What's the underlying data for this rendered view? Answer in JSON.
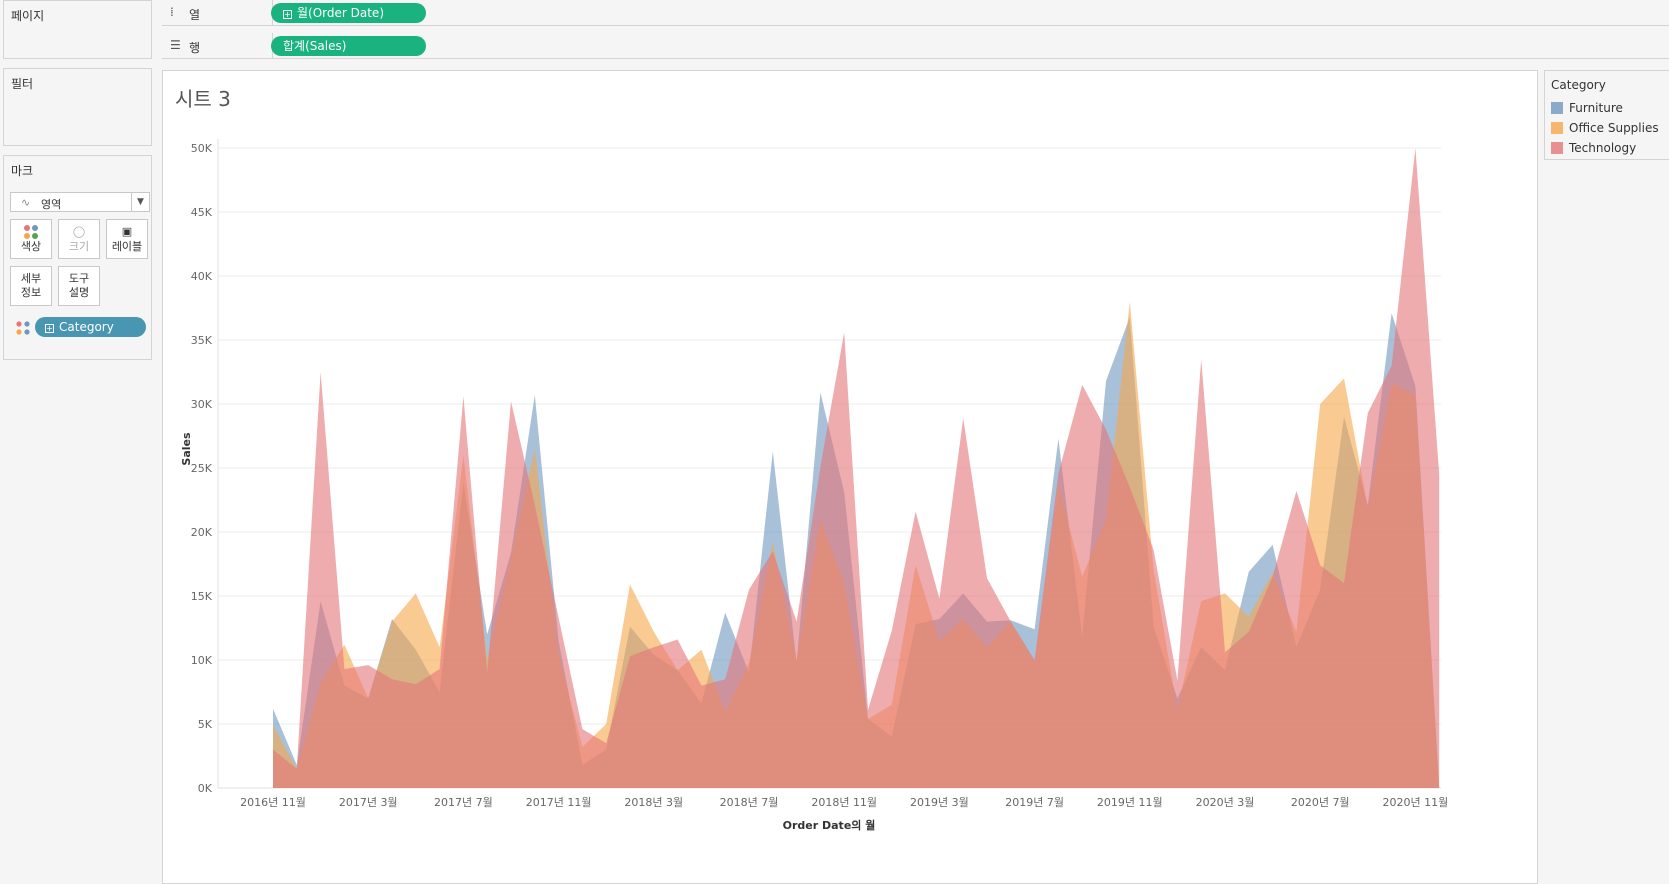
{
  "shelves": {
    "columns": {
      "label": "열",
      "pill": "월(Order Date)"
    },
    "rows": {
      "label": "행",
      "pill": "합계(Sales)"
    }
  },
  "panels": {
    "pages": "페이지",
    "filters": "필터",
    "marks": "마크"
  },
  "marks": {
    "type": "영역",
    "buttons": {
      "color": "색상",
      "size": "크기",
      "label": "레이블",
      "detail": "세부\n정보",
      "tooltip": "도구\n설명"
    },
    "category_pill": "Category"
  },
  "colors": {
    "accent_pill": "#1ab37f",
    "category_pill": "#4996b2",
    "Furniture": "#7097be",
    "Office Supplies": "#f6a64b",
    "Technology": "#e57579"
  },
  "legend": {
    "title": "Category",
    "items": [
      "Furniture",
      "Office Supplies",
      "Technology"
    ]
  },
  "chart_data": {
    "type": "area",
    "title": "시트 3",
    "xlabel": "Order Date의 월",
    "ylabel": "Sales",
    "ylim": [
      0,
      50000
    ],
    "yticks": [
      "0K",
      "5K",
      "10K",
      "15K",
      "20K",
      "25K",
      "30K",
      "35K",
      "40K",
      "45K",
      "50K"
    ],
    "x_ticks": [
      "2016년 11월",
      "2017년 3월",
      "2017년 7월",
      "2017년 11월",
      "2018년 3월",
      "2018년 7월",
      "2018년 11월",
      "2019년 3월",
      "2019년 7월",
      "2019년 11월",
      "2020년 3월",
      "2020년 7월",
      "2020년 11월"
    ],
    "x_start": "2016년 11월",
    "x_months": [
      "2016-11",
      "2016-12",
      "2017-01",
      "2017-02",
      "2017-03",
      "2017-04",
      "2017-05",
      "2017-06",
      "2017-07",
      "2017-08",
      "2017-09",
      "2017-10",
      "2017-11",
      "2017-12",
      "2018-01",
      "2018-02",
      "2018-03",
      "2018-04",
      "2018-05",
      "2018-06",
      "2018-07",
      "2018-08",
      "2018-09",
      "2018-10",
      "2018-11",
      "2018-12",
      "2019-01",
      "2019-02",
      "2019-03",
      "2019-04",
      "2019-05",
      "2019-06",
      "2019-07",
      "2019-08",
      "2019-09",
      "2019-10",
      "2019-11",
      "2019-12",
      "2020-01",
      "2020-02",
      "2020-03",
      "2020-04",
      "2020-05",
      "2020-06",
      "2020-07",
      "2020-08",
      "2020-09",
      "2020-10",
      "2020-11",
      "2020-12"
    ],
    "grid": true,
    "legend_position": "right",
    "series": [
      {
        "name": "Furniture",
        "values": [
          6200,
          1800,
          14600,
          8000,
          7000,
          13200,
          10800,
          7500,
          23800,
          12000,
          18400,
          30700,
          11500,
          1800,
          3000,
          12600,
          10400,
          9200,
          6600,
          13700,
          9000,
          26300,
          9800,
          30900,
          23100,
          5400,
          4000,
          12800,
          13200,
          15200,
          13000,
          13100,
          12400,
          27300,
          11800,
          31800,
          36800,
          12600,
          7000,
          11000,
          9200,
          16900,
          19000,
          11000,
          15500,
          29000,
          22100,
          37100,
          31400,
          0
        ]
      },
      {
        "name": "Office Supplies",
        "values": [
          4900,
          1500,
          8200,
          11200,
          7000,
          13000,
          15200,
          11000,
          26000,
          10000,
          18000,
          26500,
          10400,
          3200,
          5000,
          15900,
          12200,
          9200,
          10800,
          6000,
          9800,
          19200,
          10000,
          21000,
          16000,
          5400,
          6500,
          17400,
          11500,
          13200,
          11000,
          13000,
          9800,
          23700,
          16500,
          21000,
          38000,
          17000,
          6100,
          14600,
          15200,
          13400,
          16800,
          12200,
          30000,
          32000,
          21900,
          31600,
          30700,
          0
        ]
      },
      {
        "name": "Technology",
        "values": [
          3000,
          1500,
          32500,
          9300,
          9600,
          8500,
          8100,
          9300,
          30600,
          9000,
          30200,
          22100,
          13300,
          4600,
          3500,
          10300,
          11000,
          11600,
          8000,
          8500,
          15500,
          18500,
          13000,
          25100,
          35600,
          6100,
          12300,
          21600,
          14800,
          28900,
          16400,
          13000,
          10000,
          24600,
          31500,
          28000,
          23500,
          18600,
          8400,
          33500,
          10600,
          12200,
          16500,
          23200,
          17400,
          16000,
          29300,
          33000,
          50000,
          24500
        ]
      }
    ]
  }
}
